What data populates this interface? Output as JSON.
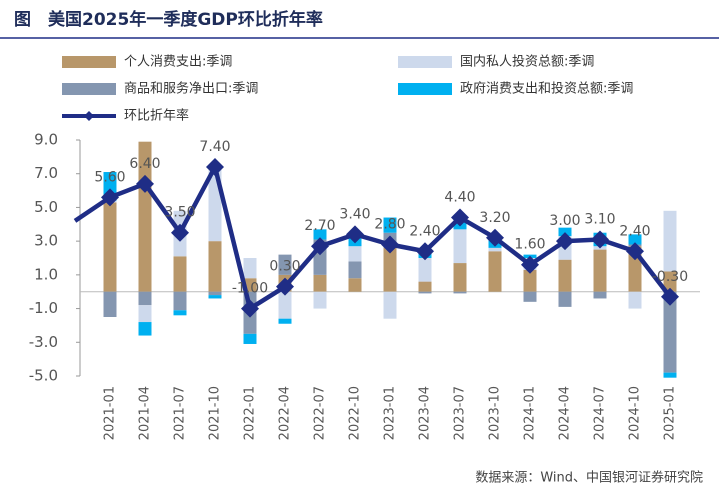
{
  "chart_data": {
    "type": "bar_line",
    "title": "图　美国2025年一季度GDP环比折年率",
    "source": "数据来源：Wind、中国银河证券研究院",
    "categories": [
      null,
      "2021-01",
      "2021-04",
      "2021-07",
      "2021-10",
      "2022-01",
      "2022-04",
      "2022-07",
      "2022-10",
      "2023-01",
      "2023-04",
      "2023-07",
      "2023-10",
      "2024-01",
      "2024-04",
      "2024-07",
      "2024-10",
      "2025-01"
    ],
    "series": [
      {
        "name": "个人消费支出:季调",
        "type": "bar",
        "color": "#b8976a",
        "values": [
          null,
          5.3,
          8.9,
          2.1,
          3.0,
          0.8,
          1.0,
          1.0,
          0.8,
          2.6,
          0.6,
          1.7,
          2.4,
          1.3,
          1.9,
          2.5,
          2.7,
          1.2
        ]
      },
      {
        "name": "国内私人投资总额:季调",
        "type": "bar",
        "color": "#cdd9ec",
        "values": [
          null,
          0.1,
          -1.0,
          2.7,
          4.5,
          1.2,
          -1.6,
          -1.0,
          0.9,
          -1.6,
          1.4,
          2.0,
          0.2,
          0.7,
          1.4,
          0.2,
          -1.0,
          3.6
        ]
      },
      {
        "name": "商品和服务净出口:季调",
        "type": "bar",
        "color": "#8496b0",
        "values": [
          null,
          -1.5,
          -0.8,
          -1.1,
          -0.2,
          -2.5,
          1.2,
          2.1,
          1.0,
          0.9,
          -0.1,
          -0.1,
          0.0,
          -0.6,
          -0.9,
          -0.4,
          0.1,
          -4.8
        ]
      },
      {
        "name": "政府消费支出和投资总额:季调",
        "type": "bar",
        "color": "#00b0f0",
        "values": [
          null,
          1.7,
          -0.8,
          -0.3,
          -0.2,
          -0.6,
          -0.3,
          0.6,
          0.6,
          0.9,
          0.5,
          0.8,
          0.6,
          0.2,
          0.5,
          0.8,
          0.6,
          -0.3
        ]
      },
      {
        "name": "环比折年率",
        "type": "line",
        "color": "#1f2d86",
        "values": [
          4.2,
          5.6,
          6.4,
          3.5,
          7.4,
          -1.0,
          0.3,
          2.7,
          3.4,
          2.8,
          2.4,
          4.4,
          3.2,
          1.6,
          3.0,
          3.1,
          2.4,
          -0.3
        ],
        "value_labels": [
          null,
          "5.60",
          "6.40",
          "3.50",
          "7.40",
          "-1.00",
          "0.30",
          "2.70",
          "3.40",
          "2.80",
          "2.40",
          "4.40",
          "3.20",
          "1.60",
          "3.00",
          "3.10",
          "2.40",
          "-0.30"
        ]
      }
    ],
    "ylim": [
      -5,
      9
    ],
    "yticks": [
      {
        "value": -5,
        "label": "-5.0"
      },
      {
        "value": -3,
        "label": "-3.0"
      },
      {
        "value": -1,
        "label": "-1.0"
      },
      {
        "value": 1,
        "label": "1.0"
      },
      {
        "value": 3,
        "label": "3.0"
      },
      {
        "value": 5,
        "label": "5.0"
      },
      {
        "value": 7,
        "label": "7.0"
      },
      {
        "value": 9,
        "label": "9.0"
      }
    ],
    "grid": false
  }
}
